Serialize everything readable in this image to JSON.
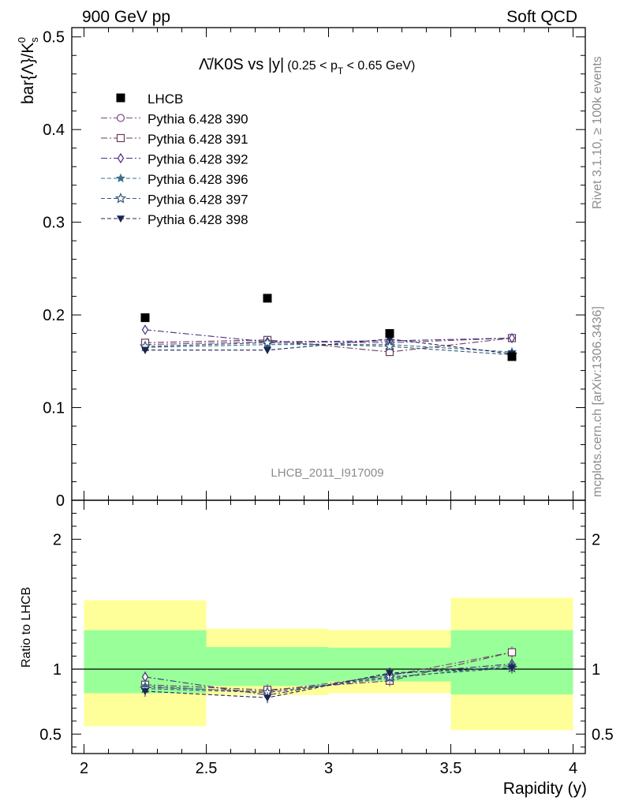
{
  "header": {
    "left": "900 GeV pp",
    "right": "Soft QCD"
  },
  "side_text": {
    "rivet": "Rivet 3.1.10, ≥ 100k events",
    "mcplots": "mcplots.cern.ch [arXiv:1306.3436]"
  },
  "watermark": "LHCB_2011_I917009",
  "chart_data": [
    {
      "type": "scatter",
      "title": "Λ̄/K0S vs |y|",
      "title_sub": "(0.25 < p",
      "title_sub_index": "T",
      "title_sub_end": " < 0.65 GeV)",
      "ylabel": "bar{Λ}/K",
      "ylabel_sub": "s",
      "ylabel_sup": "0",
      "xlim": [
        1.95,
        4.05
      ],
      "ylim": [
        0,
        0.51
      ],
      "yticks": [
        0,
        0.1,
        0.2,
        0.3,
        0.4,
        0.5
      ],
      "ytick_labels": [
        "0",
        "0.1",
        "0.2",
        "0.3",
        "0.4",
        "0.5"
      ],
      "x": [
        2.25,
        2.75,
        3.25,
        3.75
      ],
      "data": {
        "name": "LHCB",
        "values": [
          0.197,
          0.218,
          0.18,
          0.155
        ]
      },
      "series": [
        {
          "name": "Pythia 6.428 390",
          "color": "#7a4a86",
          "dash": "8,3,2,3",
          "marker": "circle-open",
          "values": [
            0.168,
            0.171,
            0.17,
            0.175
          ],
          "err": [
            0.004,
            0.004,
            0.004,
            0.005
          ]
        },
        {
          "name": "Pythia 6.428 391",
          "color": "#6b3a58",
          "dash": "8,3,2,3",
          "marker": "square-open",
          "values": [
            0.17,
            0.173,
            0.16,
            0.175
          ],
          "err": [
            0.004,
            0.004,
            0.004,
            0.005
          ]
        },
        {
          "name": "Pythia 6.428 392",
          "color": "#4a2d82",
          "dash": "8,3,2,3",
          "marker": "diamond-open",
          "values": [
            0.184,
            0.171,
            0.172,
            0.175
          ],
          "err": [
            0.004,
            0.004,
            0.004,
            0.005
          ]
        },
        {
          "name": "Pythia 6.428 396",
          "color": "#3e6e8a",
          "dash": "5,3",
          "marker": "star-filled",
          "values": [
            0.165,
            0.168,
            0.168,
            0.16
          ],
          "err": [
            0.004,
            0.004,
            0.004,
            0.005
          ]
        },
        {
          "name": "Pythia 6.428 397",
          "color": "#35567a",
          "dash": "5,3",
          "marker": "star-open",
          "values": [
            0.166,
            0.17,
            0.166,
            0.157
          ],
          "err": [
            0.004,
            0.004,
            0.004,
            0.005
          ]
        },
        {
          "name": "Pythia 6.428 398",
          "color": "#1c2450",
          "dash": "5,3",
          "marker": "triangle-down-filled",
          "values": [
            0.162,
            0.162,
            0.174,
            0.158
          ],
          "err": [
            0.004,
            0.004,
            0.004,
            0.005
          ]
        }
      ],
      "legend_position": "top-left"
    },
    {
      "type": "scatter",
      "ylabel": "Ratio to LHCB",
      "xlabel": "Rapidity (y)",
      "xlim": [
        1.95,
        4.05
      ],
      "ylim": [
        0.35,
        2.3
      ],
      "xticks": [
        2,
        2.5,
        3,
        3.5,
        4
      ],
      "xtick_labels": [
        "2",
        "2.5",
        "3",
        "3.5",
        "4"
      ],
      "yticks": [
        0.5,
        1,
        2
      ],
      "ytick_labels": [
        "0.5",
        "1",
        "2"
      ],
      "reference_line": 1,
      "bands": [
        {
          "xmin": 2.0,
          "xmax": 2.5,
          "stat_lo": 0.815,
          "stat_hi": 1.3,
          "tot_lo": 0.56,
          "tot_hi": 1.53
        },
        {
          "xmin": 2.5,
          "xmax": 3.0,
          "stat_lo": 0.87,
          "stat_hi": 1.17,
          "tot_lo": 0.8,
          "tot_hi": 1.31
        },
        {
          "xmin": 3.0,
          "xmax": 3.5,
          "stat_lo": 0.905,
          "stat_hi": 1.165,
          "tot_lo": 0.815,
          "tot_hi": 1.3
        },
        {
          "xmin": 3.5,
          "xmax": 4.0,
          "stat_lo": 0.805,
          "stat_hi": 1.3,
          "tot_lo": 0.53,
          "tot_hi": 1.55
        }
      ],
      "series": [
        {
          "name": "Pythia 6.428 390",
          "values": [
            0.86,
            0.83,
            0.95,
            1.13
          ]
        },
        {
          "name": "Pythia 6.428 391",
          "values": [
            0.88,
            0.84,
            0.91,
            1.13
          ]
        },
        {
          "name": "Pythia 6.428 392",
          "values": [
            0.94,
            0.8,
            0.96,
            1.04
          ]
        },
        {
          "name": "Pythia 6.428 396",
          "values": [
            0.87,
            0.82,
            0.93,
            1.03
          ]
        },
        {
          "name": "Pythia 6.428 397",
          "values": [
            0.85,
            0.82,
            0.94,
            1.01
          ]
        },
        {
          "name": "Pythia 6.428 398",
          "values": [
            0.83,
            0.78,
            0.97,
            1.01
          ]
        }
      ]
    }
  ]
}
